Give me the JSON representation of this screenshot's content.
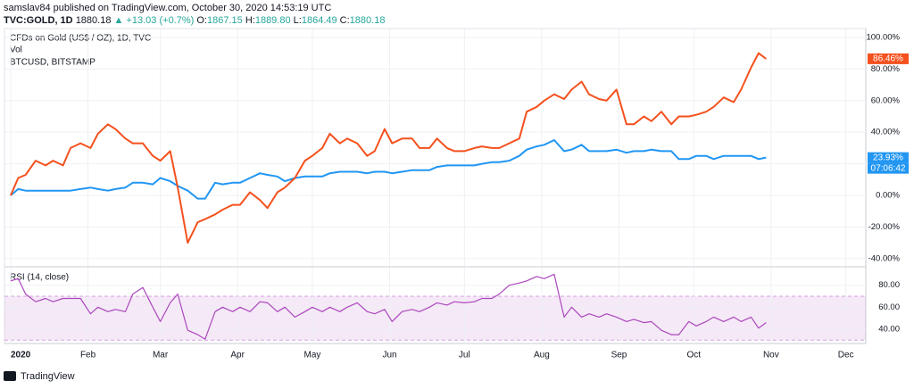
{
  "header": {
    "publisher": "samslav84 published on TradingView.com, October 30, 2020 14:53:19 UTC",
    "symbol": "TVC:GOLD, 1D",
    "last": "1880.18",
    "arrow": "▲",
    "change": "+13.03 (+0.7%)",
    "ohlc": [
      {
        "label": "O:",
        "value": "1867.15"
      },
      {
        "label": "H:",
        "value": "1889.80"
      },
      {
        "label": "L:",
        "value": "1864.49"
      },
      {
        "label": "C:",
        "value": "1880.18"
      }
    ]
  },
  "footer": "TradingView",
  "chart_data": [
    {
      "type": "line",
      "volume_label": "Vol",
      "grid": true,
      "x": [
        0,
        3,
        6,
        10,
        14,
        17,
        21,
        24,
        28,
        32,
        35,
        39,
        42,
        46,
        49,
        53,
        57,
        60,
        64,
        67,
        71,
        75,
        78,
        82,
        85,
        89,
        92,
        96,
        100,
        103,
        107,
        110,
        114,
        118,
        121,
        125,
        128,
        132,
        135,
        139,
        143,
        146,
        150,
        153,
        157,
        161,
        164,
        168,
        171,
        175,
        178,
        182,
        186,
        189,
        193,
        196,
        200,
        204,
        207,
        211,
        214,
        218,
        222,
        225,
        229,
        232,
        236,
        239,
        243,
        247,
        250,
        254,
        257,
        261,
        265,
        268,
        272,
        275,
        279,
        282,
        286,
        290,
        293,
        297,
        300,
        303
      ],
      "xlim": [
        -2.5,
        343
      ],
      "ylim": [
        -44.6,
        105.6
      ],
      "yticks": [
        {
          "value": 100,
          "label": "100.00%"
        },
        {
          "value": 80,
          "label": "80.00%"
        },
        {
          "value": 60,
          "label": "60.00%"
        },
        {
          "value": 40,
          "label": "40.00%"
        },
        {
          "value": 20,
          "label": "20.00%"
        },
        {
          "value": 0,
          "label": "0.00%"
        },
        {
          "value": -20,
          "label": "-20.00%"
        },
        {
          "value": -40,
          "label": "-40.00%"
        }
      ],
      "series": [
        {
          "name": "CFDs on Gold (US$ / OZ), 1D, TVC",
          "color": "#2196f3",
          "end_label": "23.93%",
          "countdown": "07:06:42",
          "values": [
            0,
            4,
            3,
            3,
            3,
            3,
            3,
            3,
            4,
            5,
            4,
            3,
            4,
            5,
            8,
            8,
            7,
            11,
            9,
            6,
            3,
            -2,
            -2,
            8,
            7,
            8,
            8,
            11,
            14,
            13,
            12,
            9,
            11,
            12,
            12,
            12,
            14,
            15,
            15,
            15,
            14,
            15,
            15,
            14,
            15,
            16,
            16,
            16,
            18,
            19,
            19,
            19,
            19,
            20,
            21,
            21,
            22,
            25,
            29,
            31,
            32,
            35,
            28,
            29,
            32,
            28,
            28,
            28,
            29,
            27,
            28,
            28,
            29,
            28,
            28,
            23,
            23,
            25,
            25,
            23,
            25,
            25,
            25,
            25,
            23,
            23.93
          ]
        },
        {
          "name": "BTCUSD, BITSTAMP",
          "color": "#f4511e",
          "end_label": "86.46%",
          "values": [
            0,
            11,
            13,
            22,
            19,
            22,
            19,
            30,
            33,
            30,
            39,
            45,
            42,
            36,
            33,
            33,
            25,
            22,
            28,
            5,
            -30,
            -17,
            -15,
            -12,
            -9,
            -6,
            -6,
            2,
            -3,
            -8,
            2,
            5,
            11,
            22,
            25,
            30,
            39,
            33,
            36,
            33,
            25,
            28,
            42,
            33,
            36,
            36,
            30,
            30,
            36,
            30,
            28,
            28,
            30,
            31,
            30,
            30,
            33,
            36,
            53,
            56,
            60,
            64,
            61,
            67,
            72,
            64,
            61,
            60,
            67,
            45,
            45,
            50,
            47,
            53,
            45,
            50,
            50,
            51,
            53,
            56,
            62,
            59,
            67,
            81,
            90,
            86.46
          ]
        }
      ]
    },
    {
      "type": "line",
      "title": "RSI (14, close)",
      "grid": true,
      "band": [
        30,
        70
      ],
      "band_color": "#9c27b0",
      "x": [
        0,
        3,
        6,
        10,
        14,
        17,
        21,
        24,
        28,
        32,
        35,
        39,
        42,
        46,
        49,
        53,
        57,
        60,
        64,
        67,
        71,
        75,
        78,
        82,
        85,
        89,
        92,
        96,
        100,
        103,
        107,
        110,
        114,
        118,
        121,
        125,
        128,
        132,
        135,
        139,
        143,
        146,
        150,
        153,
        157,
        161,
        164,
        168,
        171,
        175,
        178,
        182,
        186,
        189,
        193,
        196,
        200,
        204,
        207,
        211,
        214,
        218,
        222,
        225,
        229,
        232,
        236,
        239,
        243,
        247,
        250,
        254,
        257,
        261,
        265,
        268,
        272,
        275,
        279,
        282,
        286,
        290,
        293,
        297,
        300,
        303
      ],
      "xlim": [
        -2.5,
        343
      ],
      "xticks": [
        {
          "value": 0,
          "label": "2020"
        },
        {
          "value": 31,
          "label": "Feb"
        },
        {
          "value": 60,
          "label": "Mar"
        },
        {
          "value": 91,
          "label": "Apr"
        },
        {
          "value": 121,
          "label": "May"
        },
        {
          "value": 152,
          "label": "Jun"
        },
        {
          "value": 182,
          "label": "Jul"
        },
        {
          "value": 213,
          "label": "Aug"
        },
        {
          "value": 244,
          "label": "Sep"
        },
        {
          "value": 274,
          "label": "Oct"
        },
        {
          "value": 305,
          "label": "Nov"
        },
        {
          "value": 335,
          "label": "Dec"
        }
      ],
      "ylim": [
        27,
        96
      ],
      "yticks": [
        {
          "value": 80,
          "label": "80.00"
        },
        {
          "value": 60,
          "label": "60.00"
        },
        {
          "value": 40,
          "label": "40.00"
        }
      ],
      "series": [
        {
          "name": "RSI",
          "color": "#ab47bc",
          "values": [
            84,
            86,
            72,
            65,
            68,
            65,
            68,
            68,
            68,
            54,
            60,
            56,
            58,
            56,
            72,
            78,
            60,
            47,
            64,
            72,
            39,
            35,
            31,
            56,
            60,
            56,
            60,
            56,
            65,
            64,
            56,
            60,
            51,
            56,
            60,
            56,
            60,
            56,
            60,
            64,
            56,
            54,
            58,
            47,
            56,
            58,
            56,
            60,
            64,
            62,
            65,
            64,
            65,
            68,
            68,
            72,
            80,
            82,
            84,
            88,
            86,
            90,
            51,
            60,
            51,
            54,
            51,
            54,
            51,
            47,
            49,
            46,
            47,
            39,
            35,
            35,
            47,
            43,
            47,
            51,
            47,
            51,
            47,
            51,
            41,
            46
          ]
        }
      ]
    }
  ]
}
